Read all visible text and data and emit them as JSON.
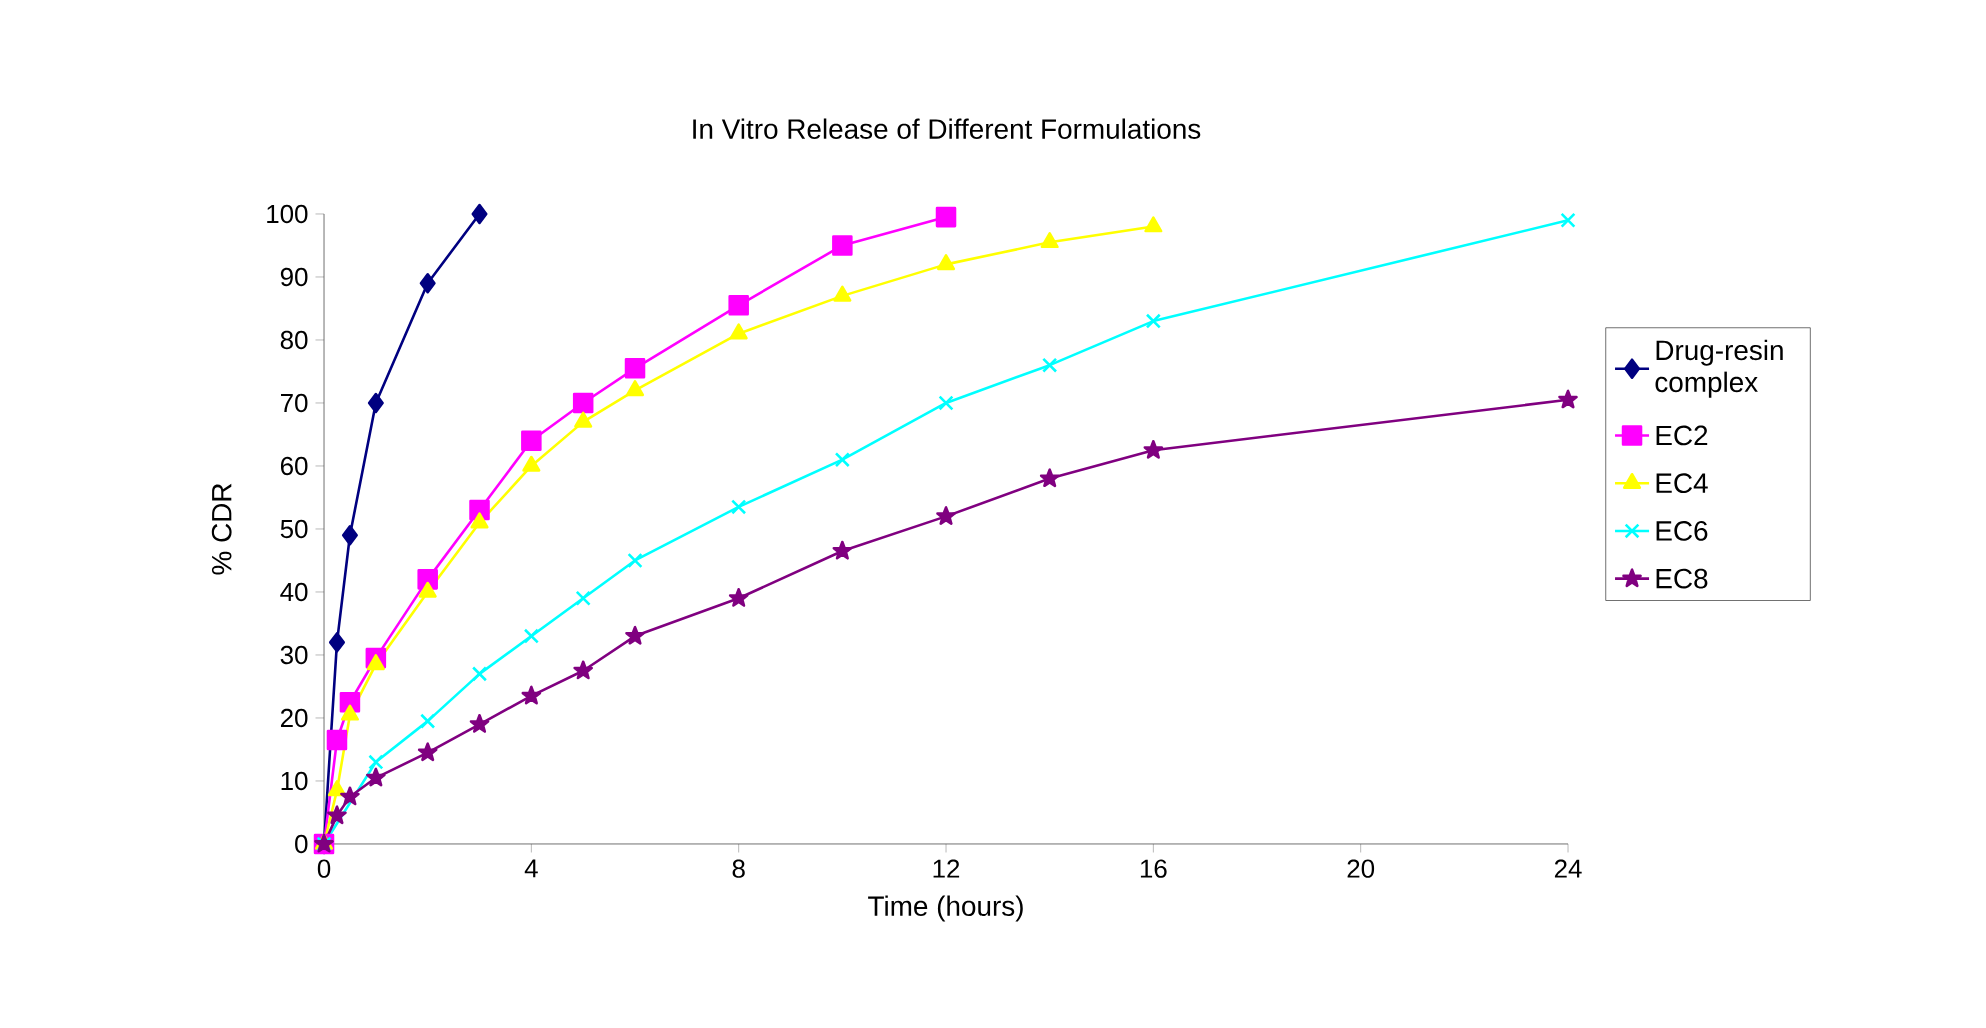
{
  "chart_data": {
    "type": "line",
    "title": "In Vitro Release of Different Formulations",
    "xlabel": "Time (hours)",
    "ylabel": "% CDR",
    "xlim": [
      0,
      24
    ],
    "xticks": [
      0,
      4,
      8,
      12,
      16,
      20,
      24
    ],
    "ylim": [
      0,
      100
    ],
    "yticks": [
      0,
      10,
      20,
      30,
      40,
      50,
      60,
      70,
      80,
      90,
      100
    ],
    "grid": false,
    "legend": "right",
    "line_style": "solid",
    "series": [
      {
        "name": "Drug-resin complex",
        "color": "#000080",
        "marker": "diamond",
        "x": [
          0,
          0.25,
          0.5,
          1,
          2,
          3
        ],
        "values": [
          0,
          32,
          49,
          70,
          89,
          100
        ]
      },
      {
        "name": "EC2",
        "color": "#ff00ff",
        "marker": "square",
        "x": [
          0,
          0.25,
          0.5,
          1,
          2,
          3,
          4,
          5,
          6,
          8,
          10,
          12
        ],
        "values": [
          0,
          16.5,
          22.5,
          29.5,
          42,
          53,
          64,
          70,
          75.5,
          85.5,
          95,
          99.5
        ]
      },
      {
        "name": "EC4",
        "color": "#ffff00",
        "marker": "triangle",
        "x": [
          0,
          0.25,
          0.5,
          1,
          2,
          3,
          4,
          5,
          6,
          8,
          10,
          12,
          14,
          16
        ],
        "values": [
          0,
          8.5,
          20.5,
          28.5,
          40,
          51,
          60,
          67,
          72,
          81,
          87,
          92,
          95.5,
          98
        ]
      },
      {
        "name": "EC6",
        "color": "#00ffff",
        "marker": "cross",
        "x": [
          0,
          0.25,
          0.5,
          1,
          2,
          3,
          4,
          5,
          6,
          8,
          10,
          12,
          14,
          16,
          24
        ],
        "values": [
          0,
          null,
          null,
          13,
          19.5,
          27,
          33,
          39,
          45,
          53.5,
          61,
          70,
          76,
          83,
          99
        ]
      },
      {
        "name": "EC8",
        "color": "#800080",
        "marker": "star",
        "x": [
          0,
          0.25,
          0.5,
          1,
          2,
          3,
          4,
          5,
          6,
          8,
          10,
          12,
          14,
          16,
          24
        ],
        "values": [
          0,
          4.5,
          7.5,
          10.5,
          14.5,
          19,
          23.5,
          27.5,
          33,
          39,
          46.5,
          52,
          58,
          62.5,
          70.5
        ]
      }
    ]
  }
}
